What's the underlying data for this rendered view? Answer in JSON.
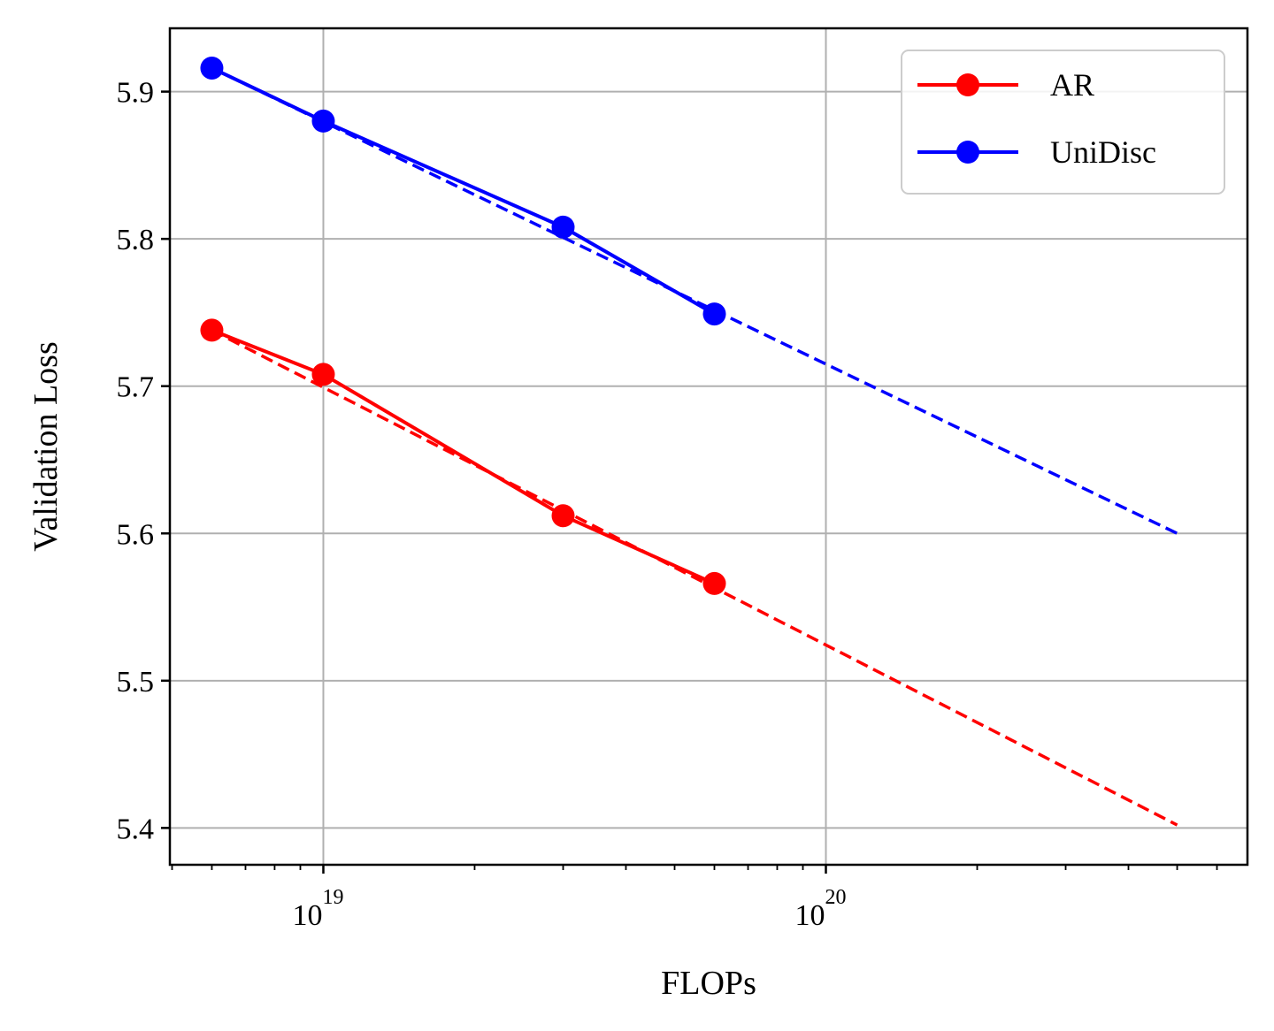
{
  "chart_data": {
    "type": "line",
    "xscale": "log",
    "xlabel": "FLOPs",
    "ylabel": "Validation Loss",
    "xlim": [
      4.95e+18,
      6.9e+20
    ],
    "ylim": [
      5.375,
      5.943
    ],
    "x_major_ticks": [
      {
        "value": 1e+19,
        "base": "10",
        "exp": "19"
      },
      {
        "value": 1e+20,
        "base": "10",
        "exp": "20"
      }
    ],
    "y_ticks": [
      {
        "value": 5.4,
        "label": "5.4"
      },
      {
        "value": 5.5,
        "label": "5.5"
      },
      {
        "value": 5.6,
        "label": "5.6"
      },
      {
        "value": 5.7,
        "label": "5.7"
      },
      {
        "value": 5.8,
        "label": "5.8"
      },
      {
        "value": 5.9,
        "label": "5.9"
      }
    ],
    "grid": true,
    "legend_position": "top-right",
    "series": [
      {
        "name": "AR",
        "color": "#ff0000",
        "x": [
          6e+18,
          1e+19,
          3e+19,
          6e+19
        ],
        "y": [
          5.738,
          5.708,
          5.612,
          5.566
        ],
        "fit": {
          "x": [
            6e+18,
            5e+20
          ],
          "y": [
            5.738,
            5.402
          ]
        }
      },
      {
        "name": "UniDisc",
        "color": "#0000ff",
        "x": [
          6e+18,
          1e+19,
          3e+19,
          6e+19
        ],
        "y": [
          5.916,
          5.88,
          5.808,
          5.749
        ],
        "fit": {
          "x": [
            6e+18,
            5e+20
          ],
          "y": [
            5.916,
            5.6
          ]
        }
      }
    ]
  }
}
